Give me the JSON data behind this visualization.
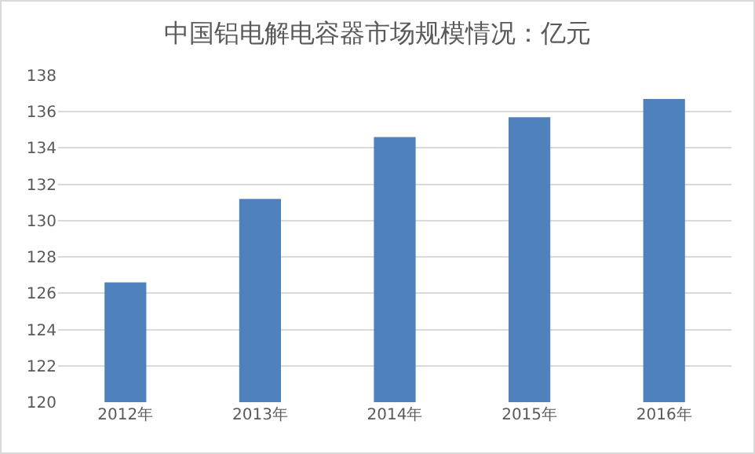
{
  "chart_data": {
    "type": "bar",
    "title": "中国铝电解电容器市场规模情况：亿元",
    "categories": [
      "2012年",
      "2013年",
      "2014年",
      "2015年",
      "2016年"
    ],
    "values": [
      126.6,
      131.2,
      134.6,
      135.7,
      136.7
    ],
    "color": "#4f81bd",
    "ylim": [
      120,
      138
    ],
    "yticks": [
      120,
      122,
      124,
      126,
      128,
      130,
      132,
      134,
      136,
      138
    ],
    "grid": "y"
  }
}
